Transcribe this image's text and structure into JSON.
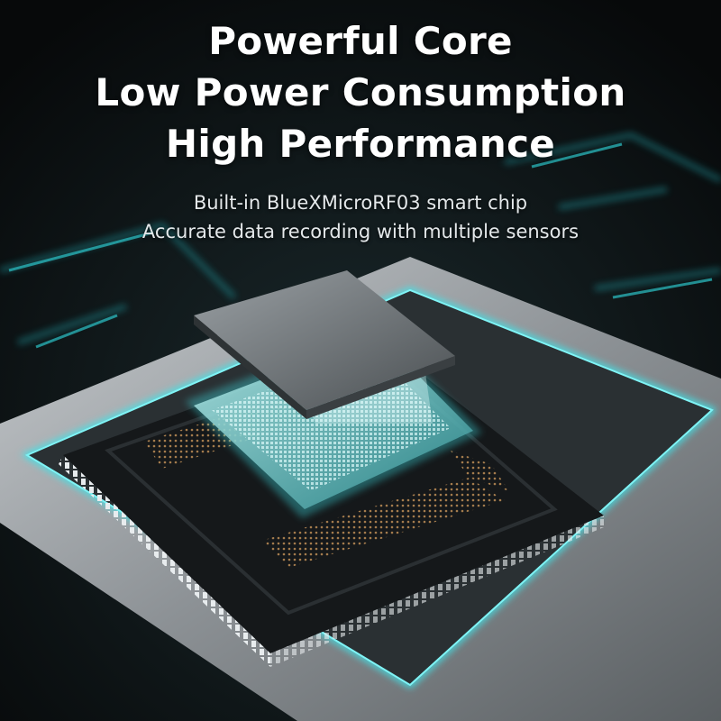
{
  "headline": {
    "lines": [
      "Powerful Core",
      "Low Power Consumption",
      "High Performance"
    ]
  },
  "subtitle": {
    "lines": [
      "Built-in BlueXMicroRF03 smart chip",
      "Accurate data recording with multiple sensors"
    ]
  },
  "colors": {
    "background": "#0b0f11",
    "accent_glow": "#3fe3e8",
    "board": "#a9adb0",
    "package": "#15181a",
    "die": "#6c7276",
    "contacts": "#c8955a"
  },
  "icons": [
    "chip-illustration"
  ]
}
